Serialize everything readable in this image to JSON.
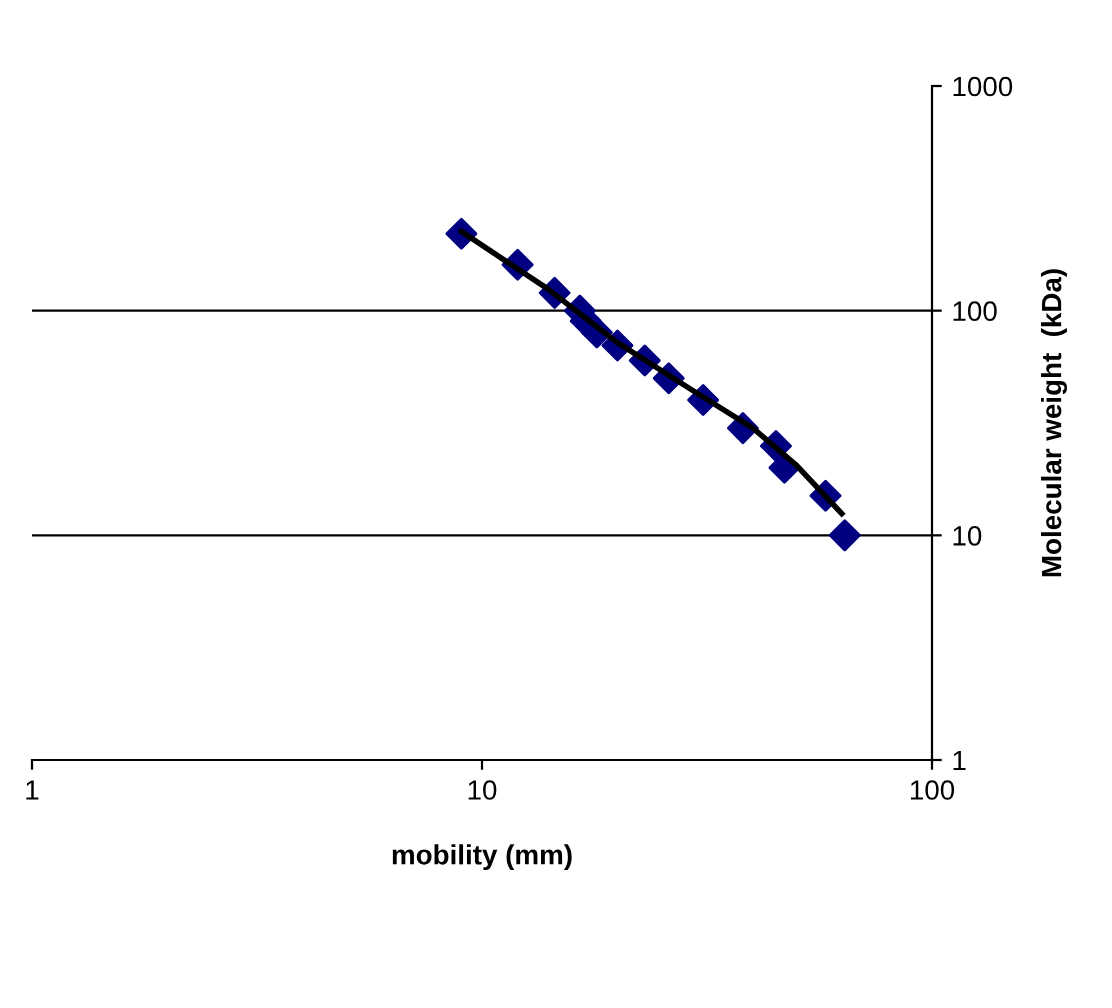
{
  "chart_data": {
    "type": "scatter",
    "xlabel": "mobility (mm)",
    "ylabel": "Molecular weight  (kDa)",
    "log": "xy",
    "xlim": [
      1,
      100
    ],
    "ylim": [
      1,
      1000
    ],
    "xticks": [
      1,
      10,
      100
    ],
    "yticks": [
      1,
      10,
      100,
      1000
    ],
    "grid": "y",
    "marker": "diamond",
    "x": [
      9,
      12,
      14.5,
      16.5,
      17,
      18,
      20,
      23,
      26,
      31,
      38,
      45,
      47,
      58,
      64
    ],
    "series": [
      {
        "color": "#000080",
        "values": [
          220,
          160,
          120,
          100,
          90,
          80,
          70,
          60,
          50,
          40,
          30,
          25,
          20,
          15,
          10
        ]
      },
      {
        "type": "line",
        "color": "#000000",
        "marker": "none",
        "line_style": "solid",
        "x": [
          9,
          14,
          20,
          30,
          40,
          50,
          63
        ],
        "values": [
          225,
          125,
          72,
          43,
          30,
          20.5,
          12.5
        ]
      }
    ]
  }
}
